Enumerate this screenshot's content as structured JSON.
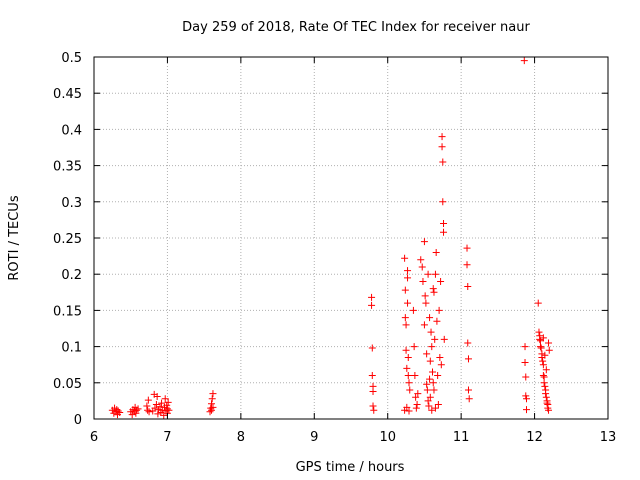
{
  "chart_data": {
    "type": "scatter",
    "title": "Day 259 of 2018, Rate Of TEC Index for receiver naur",
    "xlabel": "GPS time / hours",
    "ylabel": "ROTI / TECUs",
    "xlim": [
      6,
      13
    ],
    "ylim": [
      0,
      0.5
    ],
    "xticks": [
      "6",
      "7",
      "8",
      "9",
      "10",
      "11",
      "12",
      "13"
    ],
    "yticks": [
      "0",
      "0.05",
      "0.1",
      "0.15",
      "0.2",
      "0.25",
      "0.3",
      "0.35",
      "0.4",
      "0.45",
      "0.5"
    ],
    "grid": true,
    "marker": "+",
    "series_color": "#ff0000",
    "points": [
      [
        6.25,
        0.012
      ],
      [
        6.27,
        0.008
      ],
      [
        6.28,
        0.015
      ],
      [
        6.3,
        0.01
      ],
      [
        6.31,
        0.013
      ],
      [
        6.32,
        0.006
      ],
      [
        6.33,
        0.011
      ],
      [
        6.35,
        0.009
      ],
      [
        6.5,
        0.01
      ],
      [
        6.52,
        0.006
      ],
      [
        6.53,
        0.013
      ],
      [
        6.55,
        0.011
      ],
      [
        6.56,
        0.016
      ],
      [
        6.57,
        0.008
      ],
      [
        6.58,
        0.012
      ],
      [
        6.6,
        0.014
      ],
      [
        6.72,
        0.018
      ],
      [
        6.73,
        0.012
      ],
      [
        6.74,
        0.026
      ],
      [
        6.75,
        0.01
      ],
      [
        6.8,
        0.011
      ],
      [
        6.82,
        0.034
      ],
      [
        6.83,
        0.015
      ],
      [
        6.85,
        0.02
      ],
      [
        6.86,
        0.031
      ],
      [
        6.87,
        0.007
      ],
      [
        6.88,
        0.013
      ],
      [
        6.9,
        0.017
      ],
      [
        6.91,
        0.009
      ],
      [
        6.92,
        0.022
      ],
      [
        6.93,
        0.012
      ],
      [
        6.95,
        0.005
      ],
      [
        6.96,
        0.016
      ],
      [
        6.97,
        0.028
      ],
      [
        6.98,
        0.011
      ],
      [
        6.99,
        0.019
      ],
      [
        7.0,
        0.014
      ],
      [
        7.0,
        0.008
      ],
      [
        7.01,
        0.023
      ],
      [
        7.02,
        0.012
      ],
      [
        7.58,
        0.01
      ],
      [
        7.59,
        0.015
      ],
      [
        7.6,
        0.021
      ],
      [
        7.6,
        0.012
      ],
      [
        7.61,
        0.028
      ],
      [
        7.62,
        0.035
      ],
      [
        7.62,
        0.016
      ],
      [
        9.78,
        0.168
      ],
      [
        9.78,
        0.157
      ],
      [
        9.79,
        0.098
      ],
      [
        9.79,
        0.06
      ],
      [
        9.8,
        0.045
      ],
      [
        9.8,
        0.038
      ],
      [
        9.8,
        0.018
      ],
      [
        9.81,
        0.012
      ],
      [
        10.23,
        0.222
      ],
      [
        10.23,
        0.012
      ],
      [
        10.24,
        0.178
      ],
      [
        10.24,
        0.14
      ],
      [
        10.25,
        0.13
      ],
      [
        10.25,
        0.095
      ],
      [
        10.26,
        0.07
      ],
      [
        10.26,
        0.016
      ],
      [
        10.27,
        0.205
      ],
      [
        10.27,
        0.195
      ],
      [
        10.27,
        0.16
      ],
      [
        10.28,
        0.085
      ],
      [
        10.28,
        0.06
      ],
      [
        10.29,
        0.05
      ],
      [
        10.29,
        0.011
      ],
      [
        10.3,
        0.04
      ],
      [
        10.35,
        0.15
      ],
      [
        10.36,
        0.1
      ],
      [
        10.37,
        0.06
      ],
      [
        10.38,
        0.03
      ],
      [
        10.39,
        0.015
      ],
      [
        10.4,
        0.02
      ],
      [
        10.41,
        0.035
      ],
      [
        10.45,
        0.22
      ],
      [
        10.47,
        0.21
      ],
      [
        10.48,
        0.19
      ],
      [
        10.5,
        0.245
      ],
      [
        10.5,
        0.13
      ],
      [
        10.51,
        0.17
      ],
      [
        10.52,
        0.16
      ],
      [
        10.53,
        0.09
      ],
      [
        10.53,
        0.048
      ],
      [
        10.54,
        0.04
      ],
      [
        10.55,
        0.2
      ],
      [
        10.55,
        0.025
      ],
      [
        10.56,
        0.018
      ],
      [
        10.57,
        0.14
      ],
      [
        10.57,
        0.055
      ],
      [
        10.58,
        0.08
      ],
      [
        10.58,
        0.03
      ],
      [
        10.59,
        0.12
      ],
      [
        10.6,
        0.1
      ],
      [
        10.6,
        0.012
      ],
      [
        10.61,
        0.065
      ],
      [
        10.62,
        0.18
      ],
      [
        10.62,
        0.05
      ],
      [
        10.63,
        0.175
      ],
      [
        10.63,
        0.04
      ],
      [
        10.64,
        0.11
      ],
      [
        10.65,
        0.2
      ],
      [
        10.65,
        0.015
      ],
      [
        10.66,
        0.23
      ],
      [
        10.67,
        0.135
      ],
      [
        10.68,
        0.06
      ],
      [
        10.69,
        0.02
      ],
      [
        10.7,
        0.15
      ],
      [
        10.71,
        0.085
      ],
      [
        10.72,
        0.19
      ],
      [
        10.73,
        0.075
      ],
      [
        10.74,
        0.39
      ],
      [
        10.74,
        0.376
      ],
      [
        10.75,
        0.355
      ],
      [
        10.75,
        0.3
      ],
      [
        10.76,
        0.27
      ],
      [
        10.76,
        0.258
      ],
      [
        10.77,
        0.11
      ],
      [
        11.08,
        0.236
      ],
      [
        11.08,
        0.213
      ],
      [
        11.09,
        0.183
      ],
      [
        11.09,
        0.105
      ],
      [
        11.1,
        0.083
      ],
      [
        11.1,
        0.04
      ],
      [
        11.11,
        0.028
      ],
      [
        11.86,
        0.495
      ],
      [
        11.87,
        0.1
      ],
      [
        11.87,
        0.078
      ],
      [
        11.88,
        0.058
      ],
      [
        11.88,
        0.032
      ],
      [
        11.89,
        0.028
      ],
      [
        11.89,
        0.013
      ],
      [
        12.05,
        0.16
      ],
      [
        12.06,
        0.12
      ],
      [
        12.07,
        0.115
      ],
      [
        12.07,
        0.11
      ],
      [
        12.08,
        0.108
      ],
      [
        12.08,
        0.1
      ],
      [
        12.09,
        0.098
      ],
      [
        12.1,
        0.09
      ],
      [
        12.1,
        0.085
      ],
      [
        12.11,
        0.08
      ],
      [
        12.12,
        0.075
      ],
      [
        12.12,
        0.06
      ],
      [
        12.13,
        0.058
      ],
      [
        12.13,
        0.05
      ],
      [
        12.14,
        0.045
      ],
      [
        12.15,
        0.04
      ],
      [
        12.15,
        0.035
      ],
      [
        12.16,
        0.03
      ],
      [
        12.17,
        0.025
      ],
      [
        12.17,
        0.022
      ],
      [
        12.18,
        0.02
      ],
      [
        12.18,
        0.015
      ],
      [
        12.19,
        0.012
      ],
      [
        12.19,
        0.105
      ],
      [
        12.2,
        0.095
      ],
      [
        12.12,
        0.112
      ],
      [
        12.14,
        0.088
      ],
      [
        12.16,
        0.068
      ]
    ]
  }
}
